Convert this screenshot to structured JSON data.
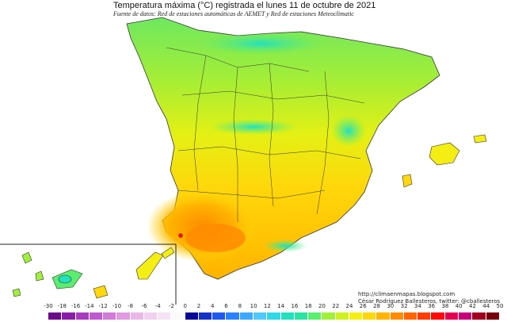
{
  "header": {
    "title": "Temperatura máxima (°C) registrada el lunes 11 de octubre de 2021",
    "subtitle": "Fuente de datos: Red de estaciones automáticas de AEMET y Red de estaciones Meteoclimatic"
  },
  "credits": {
    "url": "http://climaenmapas.blogspot.com",
    "author": "César Rodríguez Ballesteros, twitter: @cballesteros"
  },
  "legend": {
    "ticks": [
      "-30",
      "-18",
      "-16",
      "-14",
      "-12",
      "-10",
      "-8",
      "-6",
      "-4",
      "-2",
      "0",
      "2",
      "4",
      "6",
      "8",
      "10",
      "12",
      "14",
      "16",
      "18",
      "20",
      "22",
      "24",
      "26",
      "28",
      "30",
      "32",
      "34",
      "36",
      "38",
      "40",
      "42",
      "44",
      "50"
    ],
    "colors": [
      "#6a0a8a",
      "#8a1ea8",
      "#a83cc0",
      "#c05ad0",
      "#d27ad8",
      "#e09ae0",
      "#eab8e8",
      "#f2d0f0",
      "#f6e2f6",
      "#fafafa",
      "#080896",
      "#1432c8",
      "#1e5af0",
      "#2a82ff",
      "#3ca8ff",
      "#50c8ff",
      "#30d8e8",
      "#22e0c0",
      "#28e6a0",
      "#5aee6e",
      "#a0f03a",
      "#cff01e",
      "#f4ee12",
      "#ffd70a",
      "#ffb400",
      "#ff8c00",
      "#ff6400",
      "#ff3c00",
      "#ff0a0a",
      "#e60050",
      "#c80078",
      "#a0001e",
      "#78000a"
    ]
  },
  "map": {
    "features": [
      "peninsula",
      "balearic-islands",
      "canary-islands-inset",
      "hot-spot-marker"
    ]
  }
}
